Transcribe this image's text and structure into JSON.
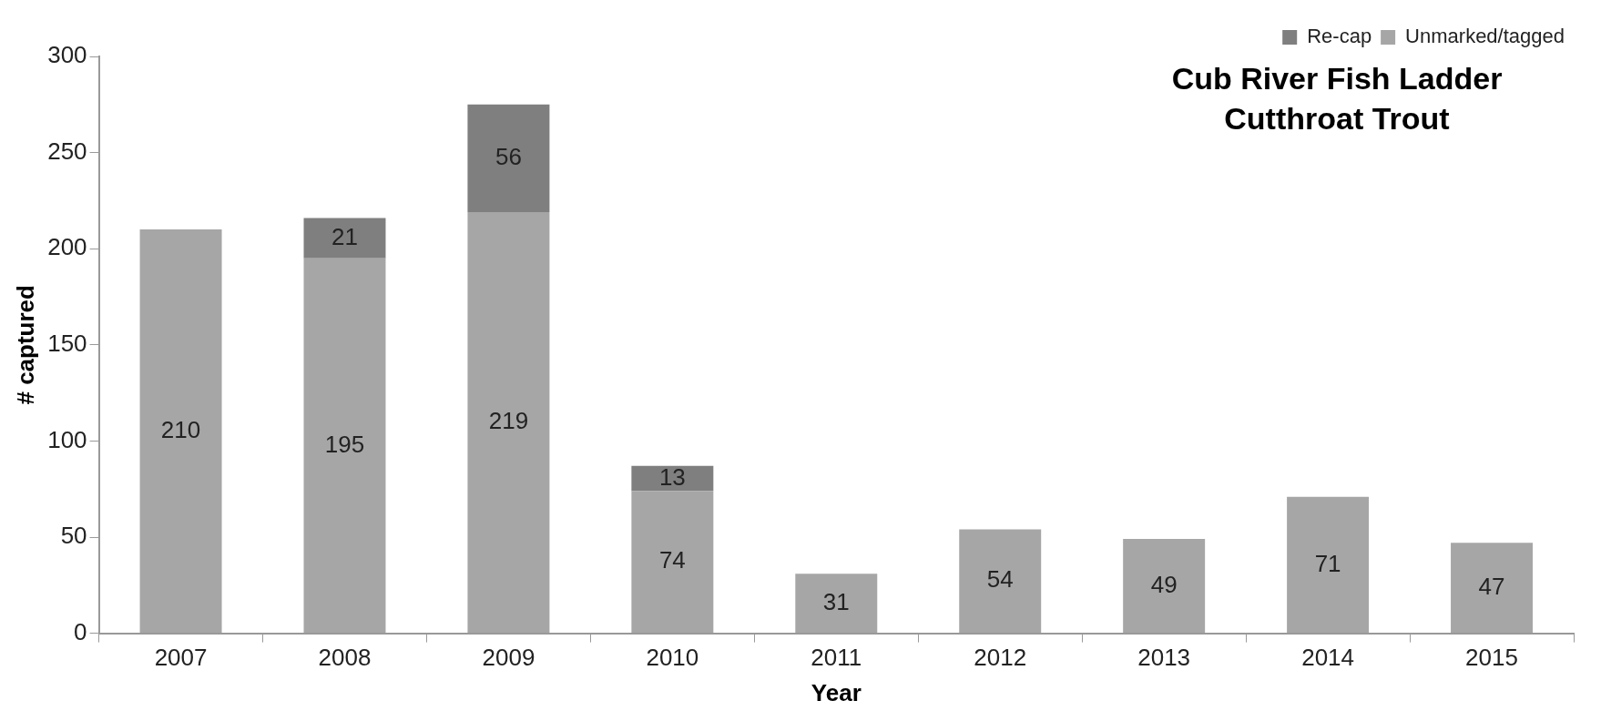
{
  "chart_data": {
    "type": "bar",
    "title": "Cub River Fish Ladder\nCutthroat Trout",
    "xlabel": "Year",
    "ylabel": "# captured",
    "categories": [
      "2007",
      "2008",
      "2009",
      "2010",
      "2011",
      "2012",
      "2013",
      "2014",
      "2015"
    ],
    "series": [
      {
        "name": "Unmarked/tagged",
        "color": "#a6a6a6",
        "values": [
          210,
          195,
          219,
          74,
          31,
          54,
          49,
          71,
          47
        ]
      },
      {
        "name": "Re-cap",
        "color": "#7f7f7f",
        "values": [
          null,
          21,
          56,
          13,
          null,
          null,
          null,
          null,
          null
        ]
      }
    ],
    "stacked": true,
    "ylim": [
      0,
      300
    ],
    "yticks": [
      0,
      50,
      100,
      150,
      200,
      250,
      300
    ],
    "grid": false,
    "legend": "top right",
    "data_labels": true
  }
}
